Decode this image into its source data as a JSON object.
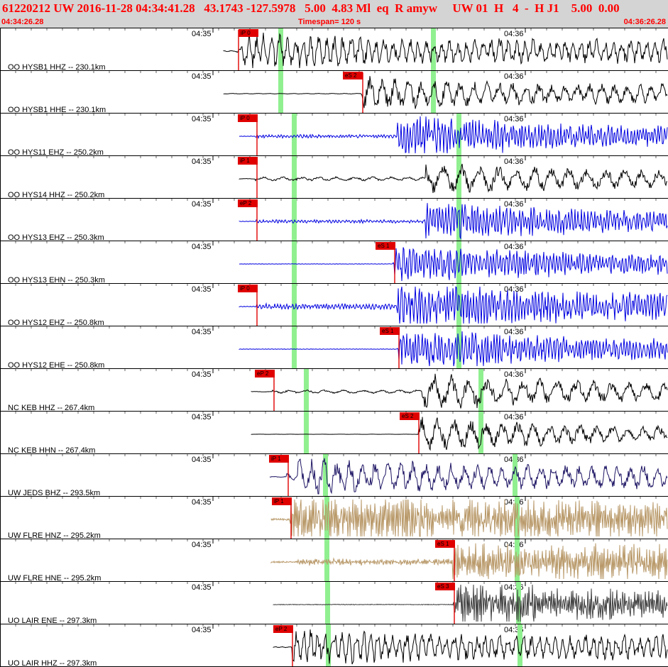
{
  "header": {
    "title": "61220212 UW 2016-11-28 04:34:41.28   43.1743 -127.5978   5.00  4.83 Ml  eq  R amyw     UW 01  H   4  -  H J1    5.00  0.00",
    "start_time": "04:34:26.28",
    "timespan": "Timespan= 120 s",
    "end_time": "04:36:26.28"
  },
  "time_ticks": {
    "first": "04:35",
    "second": "04:36"
  },
  "colors": {
    "black": "#000000",
    "blue": "#0000e0",
    "navy": "#1c1463",
    "tan": "#b89868",
    "dark_gray": "#404040",
    "pick_box": "#e00000",
    "green_marker": "#90f090"
  },
  "traces": [
    {
      "label": "OO HYSB1 HHZ -- 230.1km",
      "pick": "iP 0",
      "color": "black"
    },
    {
      "label": "OO HYSB1 HHE -- 230.1km",
      "pick": "eS 2",
      "color": "black"
    },
    {
      "label": "OO HYS11 EHZ -- 250.2km",
      "pick": "iP 0",
      "color": "blue"
    },
    {
      "label": "OO HYS14 HHZ -- 250.2km",
      "pick": "iP 1",
      "color": "black"
    },
    {
      "label": "OO HYS13 EHZ -- 250.3km",
      "pick": "eP 2",
      "color": "blue"
    },
    {
      "label": "OO HYS13 EHN -- 250.3km",
      "pick": "eS 1",
      "color": "blue"
    },
    {
      "label": "OO HYS12 EHZ -- 250.8km",
      "pick": "iP 0",
      "color": "blue"
    },
    {
      "label": "OO HYS12 EHE -- 250.8km",
      "pick": "eS 1",
      "color": "blue"
    },
    {
      "label": "NC KEB HHZ -- 267.4km",
      "pick": "eP 2",
      "color": "black"
    },
    {
      "label": "NC KEB HHN -- 267.4km",
      "pick": "eS 2",
      "color": "black"
    },
    {
      "label": "UW JEDS BHZ -- 293.5km",
      "pick": "iP 1",
      "color": "navy"
    },
    {
      "label": "UW FLRE HNZ -- 295.2km",
      "pick": "iP 1",
      "color": "tan"
    },
    {
      "label": "UW FLRE HNE -- 295.2km",
      "pick": "eS 1",
      "color": "tan"
    },
    {
      "label": "UO LAIR ENE -- 297.3km",
      "pick": "eS 3",
      "color": "dark_gray"
    },
    {
      "label": "UO LAIR HHZ -- 297.3km",
      "pick": "eP 2",
      "color": "black"
    }
  ]
}
